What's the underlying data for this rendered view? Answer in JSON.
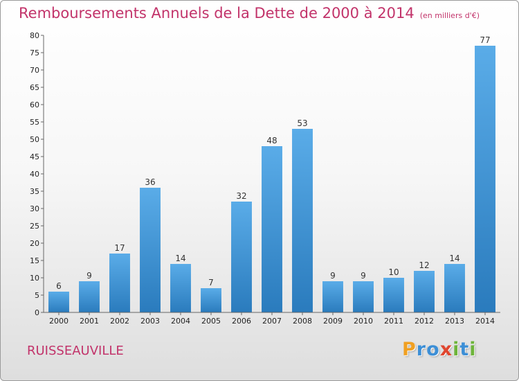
{
  "chart_data": {
    "type": "bar",
    "title": "Remboursements Annuels de la Dette de 2000 à 2014",
    "subtitle": "(en milliers d'€)",
    "categories": [
      "2000",
      "2001",
      "2002",
      "2003",
      "2004",
      "2005",
      "2006",
      "2007",
      "2008",
      "2009",
      "2010",
      "2011",
      "2012",
      "2013",
      "2014"
    ],
    "values": [
      6,
      9,
      17,
      36,
      14,
      7,
      32,
      48,
      53,
      9,
      9,
      10,
      12,
      14,
      77
    ],
    "ylim": [
      0,
      80
    ],
    "yticks": [
      0,
      5,
      10,
      15,
      20,
      25,
      30,
      35,
      40,
      45,
      50,
      55,
      60,
      65,
      70,
      75,
      80
    ],
    "grid": false,
    "legend": "none",
    "colors": {
      "bar_light": "#5aace8",
      "bar_dark": "#2a7bbd",
      "title": "#c2336a"
    }
  },
  "footer": {
    "town": "RUISSEAUVILLE"
  },
  "brand": {
    "name": "Proxiti",
    "letters": [
      {
        "char": "P",
        "color": "#f0a022"
      },
      {
        "char": "r",
        "color": "#3d8fd6"
      },
      {
        "char": "o",
        "color": "#3d8fd6"
      },
      {
        "char": "x",
        "color": "#e0462f"
      },
      {
        "char": "i",
        "color": "#6db43a"
      },
      {
        "char": "t",
        "color": "#3d8fd6"
      },
      {
        "char": "i",
        "color": "#6db43a"
      }
    ]
  }
}
